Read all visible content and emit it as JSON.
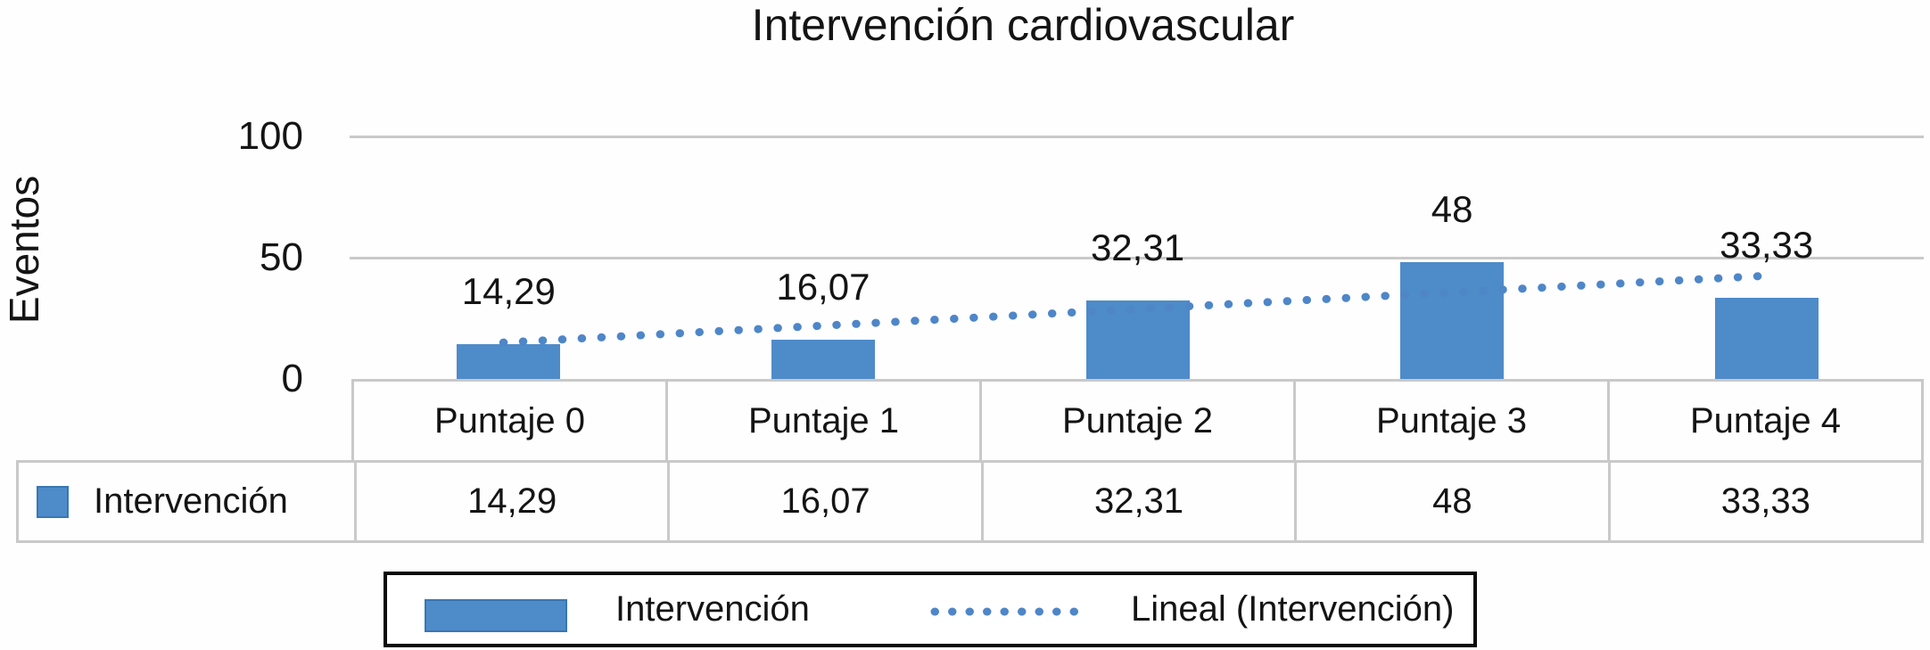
{
  "chart_data": {
    "type": "bar",
    "title": "Intervención cardiovascular",
    "ylabel": "Eventos",
    "xlabel": "",
    "categories": [
      "Puntaje 0",
      "Puntaje 1",
      "Puntaje 2",
      "Puntaje 3",
      "Puntaje 4"
    ],
    "series": [
      {
        "name": "Intervención",
        "values": [
          14.29,
          16.07,
          32.31,
          48,
          33.33
        ]
      }
    ],
    "value_labels": [
      "14,29",
      "16,07",
      "32,31",
      "48",
      "33,33"
    ],
    "ylim": [
      0,
      100
    ],
    "yticks": {
      "values": [
        100,
        50,
        0
      ],
      "labels": [
        "100",
        "50",
        "0"
      ]
    },
    "grid": true,
    "legend_position": "bottom",
    "trendline": {
      "label": "Lineal (Intervención)",
      "series": "Intervención",
      "style": "dotted",
      "start_value": 15.0,
      "end_value": 42.7
    },
    "colors": {
      "bar": "#4e8bc9",
      "trend": "#4e86c8",
      "gridline": "#c9c9c9",
      "table_border": "#c9c9c9",
      "legend_border": "#0a0a0a",
      "text": "#141414"
    }
  },
  "data_table": {
    "row_label": "Intervención",
    "values": [
      "14,29",
      "16,07",
      "32,31",
      "48",
      "33,33"
    ]
  },
  "legend": {
    "items": [
      {
        "label": "Intervención",
        "marker": "bar-swatch"
      },
      {
        "label": "Lineal (Intervención)",
        "marker": "dotted-line"
      }
    ]
  }
}
